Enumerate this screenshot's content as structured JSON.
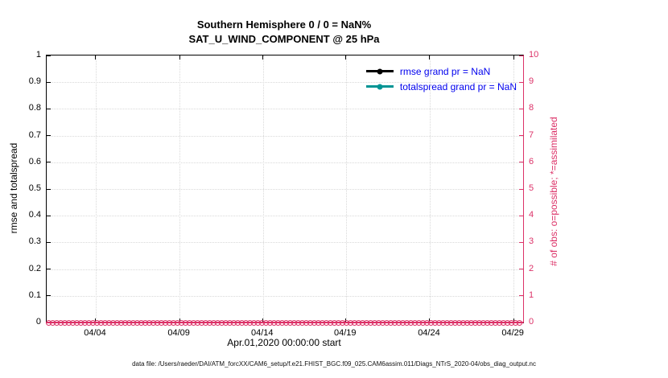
{
  "colors": {
    "crimson": "#dc3268",
    "teal": "#009494",
    "legend_text": "#0000ee",
    "grid": "#d9d9d9",
    "black": "#000000",
    "background": "#ffffff"
  },
  "title": {
    "line1": "Southern Hemisphere 0 / 0 = NaN%",
    "line2": "SAT_U_WIND_COMPONENT @ 25 hPa"
  },
  "axes": {
    "left": {
      "label": "rmse and totalspread",
      "ticks": [
        "0",
        "0.1",
        "0.2",
        "0.3",
        "0.4",
        "0.5",
        "0.6",
        "0.7",
        "0.8",
        "0.9",
        "1"
      ]
    },
    "right": {
      "label": "# of obs: o=possible; *=assimilated",
      "ticks": [
        "0",
        "1",
        "2",
        "3",
        "4",
        "5",
        "6",
        "7",
        "8",
        "9",
        "10"
      ]
    },
    "x": {
      "label": "Apr.01,2020 00:00:00 start",
      "ticks": [
        {
          "label": "04/04",
          "f": 0.103
        },
        {
          "label": "04/09",
          "f": 0.279
        },
        {
          "label": "04/14",
          "f": 0.454
        },
        {
          "label": "04/19",
          "f": 0.628
        },
        {
          "label": "04/24",
          "f": 0.804
        },
        {
          "label": "04/29",
          "f": 0.98
        }
      ]
    }
  },
  "legend": {
    "items": [
      {
        "label": "rmse grand pr = NaN",
        "line_color": "#000000"
      },
      {
        "label": "totalspread grand pr = NaN",
        "line_color": "#009494"
      }
    ]
  },
  "footer": "data file: /Users/raeder/DAI/ATM_forcXX/CAM6_setup/f.e21.FHIST_BGC.f09_025.CAM6assim.011/Diags_NTrS_2020-04/obs_diag_output.nc",
  "chart_data": {
    "type": "line",
    "title": "Southern Hemisphere 0 / 0 = NaN% — SAT_U_WIND_COMPONENT @ 25 hPa",
    "xlabel": "Apr.01,2020 00:00:00 start",
    "x_tick_labels": [
      "04/04",
      "04/09",
      "04/14",
      "04/19",
      "04/24",
      "04/29"
    ],
    "x_range": [
      "2020-04-01 00:00",
      "2020-04-30"
    ],
    "left_axis": {
      "ylabel": "rmse and totalspread",
      "ylim": [
        0,
        1
      ],
      "tick_step": 0.1
    },
    "right_axis": {
      "ylabel": "# of obs: o=possible; *=assimilated",
      "ylim": [
        0,
        10
      ],
      "tick_step": 1
    },
    "series": [
      {
        "name": "rmse",
        "grand_pr": "NaN",
        "axis": "left",
        "color": "#000000",
        "values": "all NaN — no curve drawn"
      },
      {
        "name": "totalspread",
        "grand_pr": "NaN",
        "axis": "left",
        "color": "#009494",
        "values": "all NaN — no curve drawn"
      },
      {
        "name": "# of possible obs (o markers)",
        "axis": "right",
        "color": "#dc3268",
        "constant_value": 0
      },
      {
        "name": "# of assimilated obs (* markers)",
        "axis": "right",
        "color": "#dc3268",
        "constant_value": 0
      }
    ],
    "marker_count": 118,
    "grid": true,
    "legend_position": "upper right inside"
  }
}
